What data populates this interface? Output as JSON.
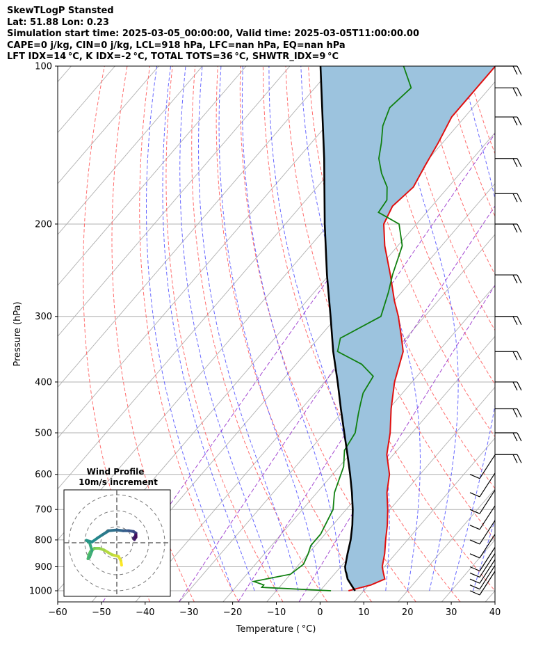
{
  "header": {
    "line1": "SkewTLogP Stansted",
    "line2": "Lat: 51.88   Lon: 0.23",
    "line3": "Simulation start time: 2025-03-05_00:00:00, Valid time: 2025-03-05T11:00:00.00",
    "line4": "CAPE=0 j/kg, CIN=0 j/kg, LCL=918 hPa, LFC=nan hPa, EQ=nan hPa",
    "line5": "LFT IDX=14 °C, K IDX=-2 °C, TOTAL TOTS=36 °C, SHWTR_IDX=9 °C"
  },
  "colors": {
    "temperature": "#e01010",
    "dewpoint": "#108010",
    "parcel": "#000000",
    "cape_fill": "#9cc3de",
    "dry_adiabat": "#ff5555",
    "moist_adiabat": "#4d4dff",
    "mixing_ratio": "#9933cc",
    "isotherm": "#b0b0b0"
  },
  "chart_data": {
    "type": "skewt",
    "xlabel": "Temperature ( °C)",
    "ylabel": "Pressure (hPa)",
    "xlim": [
      -60,
      40
    ],
    "ylim": [
      1050,
      100
    ],
    "x_ticks": [
      -60,
      -50,
      -40,
      -30,
      -20,
      -10,
      0,
      10,
      20,
      30,
      40
    ],
    "y_ticks": [
      1000,
      900,
      800,
      700,
      600,
      500,
      400,
      300,
      200,
      100
    ],
    "y_scale": "log",
    "grid": true,
    "temperature": [
      [
        1000,
        6.5
      ],
      [
        975,
        10.5
      ],
      [
        950,
        12.5
      ],
      [
        925,
        11.0
      ],
      [
        900,
        9.5
      ],
      [
        850,
        7.5
      ],
      [
        800,
        5.0
      ],
      [
        750,
        2.5
      ],
      [
        700,
        -0.5
      ],
      [
        650,
        -4.0
      ],
      [
        600,
        -7.0
      ],
      [
        550,
        -11.5
      ],
      [
        500,
        -15.0
      ],
      [
        450,
        -19.5
      ],
      [
        400,
        -24.0
      ],
      [
        350,
        -28.0
      ],
      [
        330,
        -31.0
      ],
      [
        300,
        -36.0
      ],
      [
        280,
        -40.0
      ],
      [
        250,
        -46.0
      ],
      [
        220,
        -53.0
      ],
      [
        200,
        -57.5
      ],
      [
        185,
        -59.0
      ],
      [
        170,
        -58.0
      ],
      [
        155,
        -59.5
      ],
      [
        140,
        -61.0
      ],
      [
        125,
        -63.0
      ],
      [
        115,
        -63.0
      ],
      [
        108,
        -63.0
      ],
      [
        100,
        -63.0
      ]
    ],
    "dewpoint": [
      [
        1000,
        2.5
      ],
      [
        985,
        -14.0
      ],
      [
        975,
        -14.0
      ],
      [
        960,
        -17.0
      ],
      [
        930,
        -10.0
      ],
      [
        890,
        -9.0
      ],
      [
        850,
        -10.0
      ],
      [
        820,
        -11.0
      ],
      [
        780,
        -11.0
      ],
      [
        700,
        -13.0
      ],
      [
        650,
        -16.0
      ],
      [
        580,
        -19.0
      ],
      [
        540,
        -22.0
      ],
      [
        500,
        -23.0
      ],
      [
        460,
        -26.0
      ],
      [
        440,
        -27.5
      ],
      [
        420,
        -29.0
      ],
      [
        390,
        -30.0
      ],
      [
        370,
        -35.0
      ],
      [
        350,
        -43.0
      ],
      [
        330,
        -45.0
      ],
      [
        300,
        -40.0
      ],
      [
        270,
        -43.0
      ],
      [
        250,
        -45.5
      ],
      [
        220,
        -49.0
      ],
      [
        200,
        -54.0
      ],
      [
        190,
        -61.0
      ],
      [
        180,
        -61.5
      ],
      [
        170,
        -64.0
      ],
      [
        160,
        -68.0
      ],
      [
        150,
        -71.5
      ],
      [
        140,
        -74.0
      ],
      [
        130,
        -77.0
      ],
      [
        120,
        -79.0
      ],
      [
        110,
        -78.0
      ],
      [
        100,
        -84.0
      ]
    ],
    "parcel": [
      [
        1000,
        8.0
      ],
      [
        975,
        6.0
      ],
      [
        950,
        4.0
      ],
      [
        925,
        2.5
      ],
      [
        918,
        2.0
      ],
      [
        900,
        1.0
      ],
      [
        850,
        -1.0
      ],
      [
        800,
        -3.0
      ],
      [
        750,
        -5.5
      ],
      [
        700,
        -8.5
      ],
      [
        650,
        -12.0
      ],
      [
        600,
        -16.0
      ],
      [
        550,
        -20.5
      ],
      [
        500,
        -25.5
      ],
      [
        450,
        -31.0
      ],
      [
        400,
        -37.0
      ],
      [
        350,
        -44.0
      ],
      [
        300,
        -51.5
      ],
      [
        250,
        -60.5
      ],
      [
        200,
        -71.0
      ],
      [
        150,
        -84.0
      ],
      [
        100,
        -103.0
      ]
    ],
    "wind_barbs_hPa": [
      1000,
      975,
      950,
      925,
      900,
      850,
      800,
      750,
      700,
      650,
      600,
      550,
      500,
      450,
      400,
      350,
      300,
      250,
      200,
      175,
      150,
      125,
      110,
      100
    ],
    "hodograph": {
      "title": "Wind Profile",
      "subtitle": "10m/s increment",
      "u": [
        3.0,
        2.5,
        1.0,
        -3.0,
        -8.0,
        -11.0,
        -14.0,
        -16.5,
        -17.5,
        -18.0,
        -17.0,
        -15.5,
        -17.0,
        -19.0,
        -15.5,
        -12.0,
        -9.0,
        -5.0,
        0.0,
        4.0,
        7.5,
        10.5,
        12.0,
        11.5,
        10.5,
        11.0,
        12.0,
        12.0
      ],
      "v": [
        -14.0,
        -11.0,
        -8.5,
        -7.5,
        -4.5,
        -3.5,
        -3.5,
        -5.5,
        -7.5,
        -10.0,
        -9.0,
        -5.0,
        0.0,
        1.5,
        0.5,
        3.0,
        5.0,
        7.5,
        8.0,
        7.5,
        7.5,
        7.0,
        6.0,
        4.0,
        3.0,
        2.0,
        3.5,
        5.0
      ]
    }
  }
}
